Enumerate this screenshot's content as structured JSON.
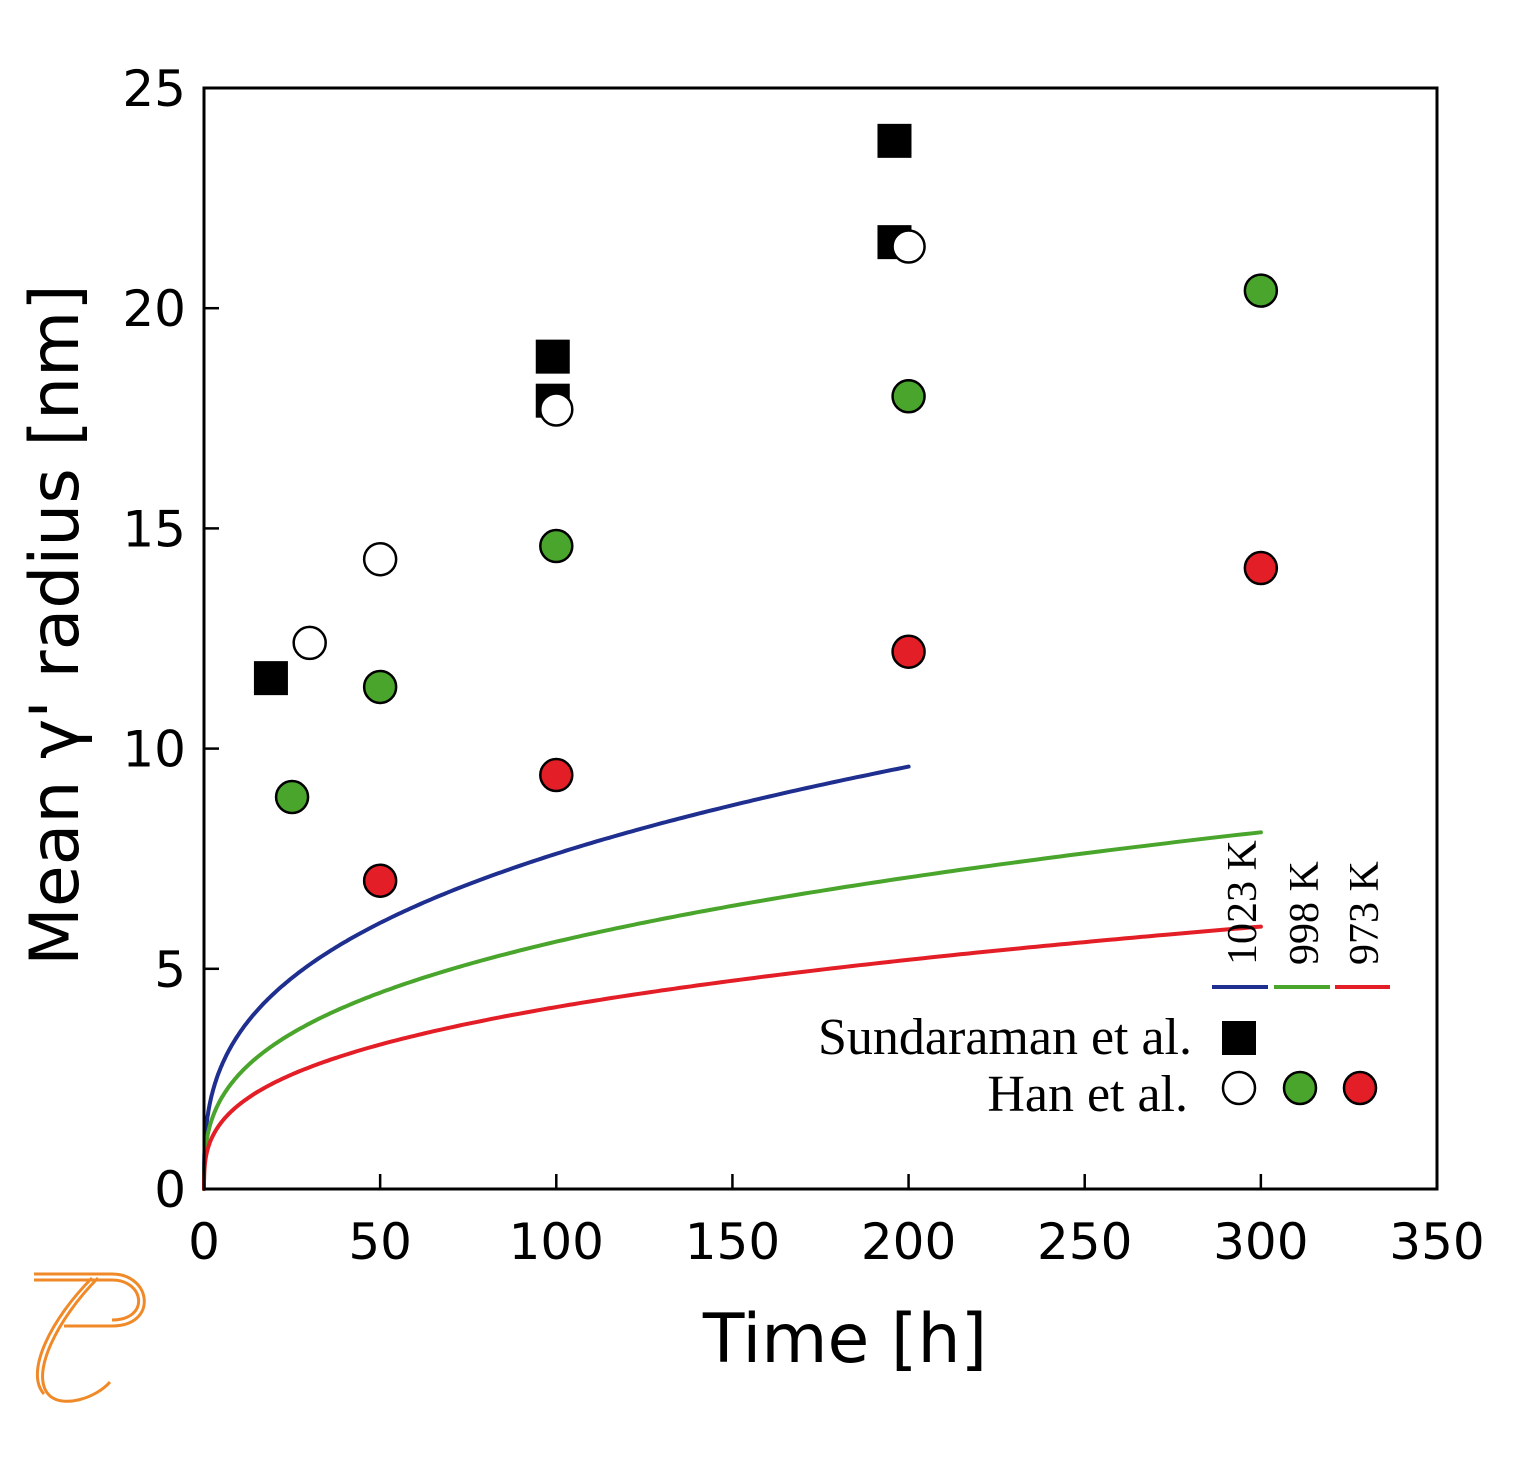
{
  "chart_data": {
    "type": "scatter",
    "xlabel": "Time [h]",
    "ylabel": "Mean γ' radius [nm]",
    "xlim": [
      0,
      350
    ],
    "ylim": [
      0,
      25
    ],
    "xticks": [
      0,
      50,
      100,
      150,
      200,
      250,
      300,
      350
    ],
    "yticks": [
      0,
      5,
      10,
      15,
      20,
      25
    ],
    "grid": false,
    "legend": {
      "placement": "bottom-right",
      "temperatures": [
        "1023 K",
        "998 K",
        "973 K"
      ],
      "sources": [
        "Sundaraman et al.",
        "Han et al."
      ]
    },
    "lines": [
      {
        "name": "1023 K",
        "color": "#1f2f8f",
        "coef": 1.64,
        "x_max": 200
      },
      {
        "name": "998 K",
        "color": "#4aa52c",
        "coef": 1.21,
        "x_max": 300
      },
      {
        "name": "973 K",
        "color": "#e31e26",
        "coef": 0.89,
        "x_max": 300
      }
    ],
    "series": [
      {
        "source": "Sundaraman et al.",
        "temperature": "1023 K",
        "marker": "square",
        "fill": "#000000",
        "x": [
          19,
          99,
          99,
          196,
          196
        ],
        "y": [
          11.6,
          18.9,
          17.9,
          23.8,
          21.5
        ]
      },
      {
        "source": "Han et al.",
        "temperature": "1023 K",
        "marker": "circle",
        "fill": "#ffffff",
        "x": [
          30,
          50,
          100,
          200
        ],
        "y": [
          12.4,
          14.3,
          17.7,
          21.4
        ]
      },
      {
        "source": "Han et al.",
        "temperature": "998 K",
        "marker": "circle",
        "fill": "#4aa52c",
        "x": [
          25,
          50,
          100,
          200,
          300
        ],
        "y": [
          8.9,
          11.4,
          14.6,
          18.0,
          20.4
        ]
      },
      {
        "source": "Han et al.",
        "temperature": "973 K",
        "marker": "circle",
        "fill": "#e31e26",
        "x": [
          50,
          100,
          200,
          300
        ],
        "y": [
          7.0,
          9.4,
          12.2,
          14.1
        ]
      }
    ]
  }
}
